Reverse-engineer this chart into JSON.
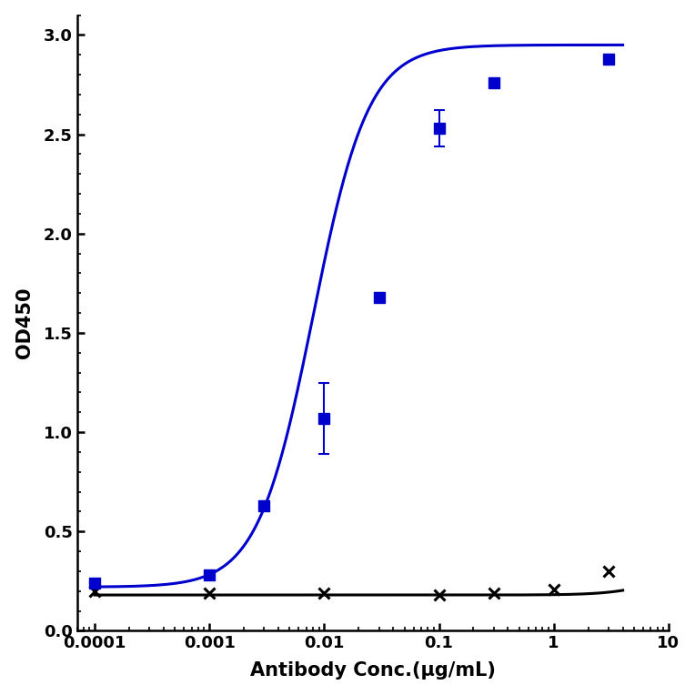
{
  "blue_x": [
    0.0001,
    0.001,
    0.003,
    0.01,
    0.03,
    0.1,
    0.3,
    3.0
  ],
  "blue_y": [
    0.24,
    0.28,
    0.63,
    1.07,
    1.68,
    2.53,
    2.76,
    2.88
  ],
  "blue_yerr": [
    0.02,
    0.0,
    0.02,
    0.18,
    0.02,
    0.09,
    0.02,
    0.02
  ],
  "black_x": [
    0.0001,
    0.001,
    0.01,
    0.1,
    0.3,
    1.0,
    3.0
  ],
  "black_y": [
    0.2,
    0.19,
    0.19,
    0.18,
    0.19,
    0.21,
    0.3
  ],
  "blue_color": "#0000CC",
  "black_color": "#000000",
  "xlabel": "Antibody Conc.(μg/mL)",
  "ylabel": "OD450",
  "ylim": [
    0.0,
    3.1
  ],
  "yticks": [
    0.0,
    0.5,
    1.0,
    1.5,
    2.0,
    2.5,
    3.0
  ],
  "xtick_vals": [
    0.0001,
    0.001,
    0.01,
    0.1,
    1,
    10
  ],
  "background_color": "#ffffff",
  "marker_blue": "s",
  "marker_black": "x",
  "markersize_blue": 8,
  "markersize_black": 9,
  "linewidth": 2.2
}
